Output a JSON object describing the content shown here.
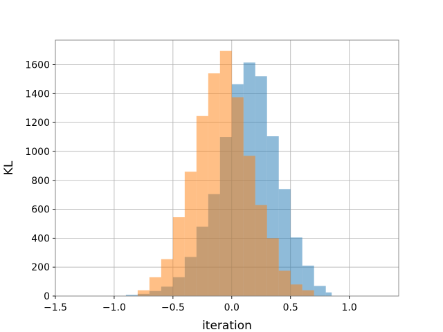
{
  "chart_data": {
    "type": "bar",
    "subtype": "overlapping-histogram",
    "title": "",
    "xlabel": "iteration",
    "ylabel": "KL",
    "xlim": [
      -1.5,
      1.42
    ],
    "ylim": [
      0,
      1770
    ],
    "xticks": [
      -1.5,
      -1.0,
      -0.5,
      0.0,
      0.5,
      1.0
    ],
    "xtick_labels": [
      "−1.5",
      "−1.0",
      "−0.5",
      "0.0",
      "0.5",
      "1.0"
    ],
    "yticks": [
      0,
      200,
      400,
      600,
      800,
      1000,
      1200,
      1400,
      1600
    ],
    "ytick_labels": [
      "0",
      "200",
      "400",
      "600",
      "800",
      "1000",
      "1200",
      "1400",
      "1600"
    ],
    "grid": true,
    "legend": "none",
    "series": [
      {
        "color": "#1f77b4",
        "alpha": 0.5,
        "bin_edges": [
          -0.9,
          -0.8,
          -0.7,
          -0.6,
          -0.5,
          -0.4,
          -0.3,
          -0.2,
          -0.1,
          0.0,
          0.1,
          0.2,
          0.3,
          0.4,
          0.5,
          0.6,
          0.7,
          0.8,
          0.85
        ],
        "counts": [
          8,
          15,
          35,
          65,
          130,
          270,
          480,
          705,
          1100,
          1465,
          1615,
          1520,
          1105,
          740,
          405,
          210,
          70,
          25
        ]
      },
      {
        "color": "#ff7f0e",
        "alpha": 0.5,
        "bin_edges": [
          -0.8,
          -0.7,
          -0.6,
          -0.5,
          -0.4,
          -0.3,
          -0.2,
          -0.1,
          0.0,
          0.1,
          0.2,
          0.3,
          0.4,
          0.5,
          0.6,
          0.7
        ],
        "counts": [
          40,
          130,
          255,
          545,
          860,
          1245,
          1540,
          1695,
          1375,
          970,
          630,
          400,
          175,
          80,
          40
        ]
      }
    ]
  }
}
